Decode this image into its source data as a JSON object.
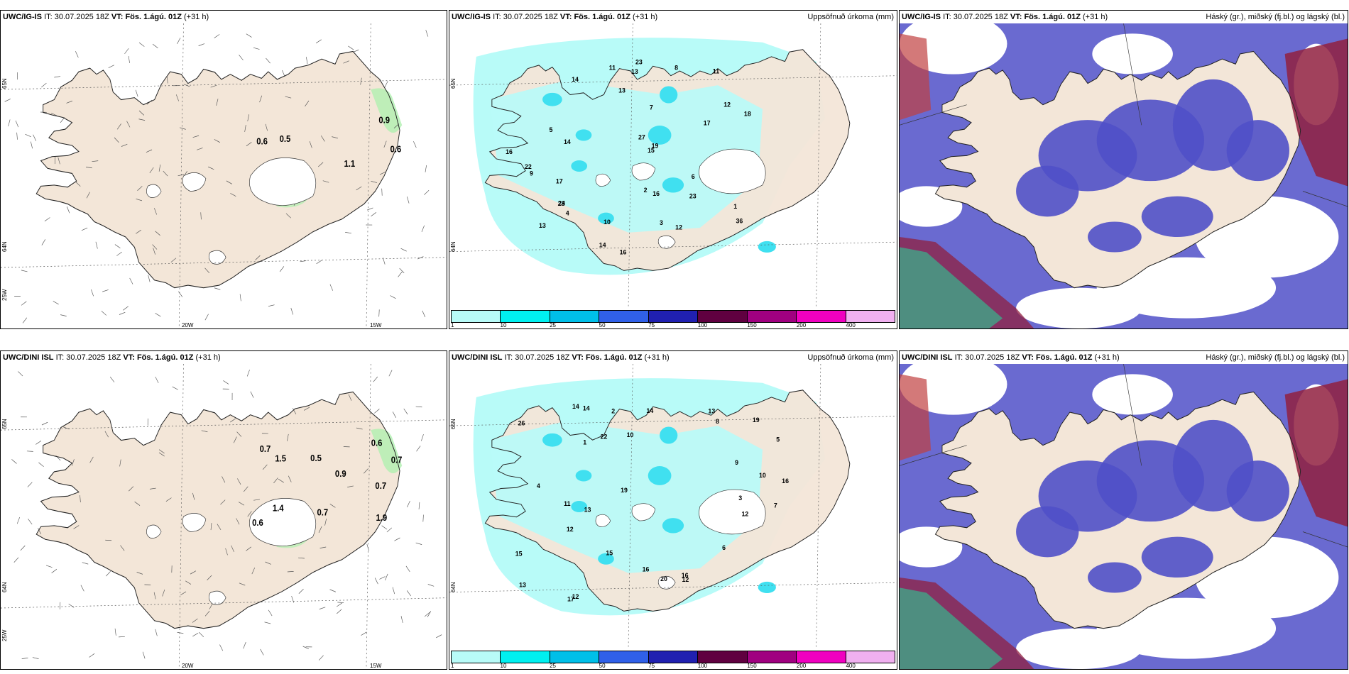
{
  "legend": {
    "ticks": [
      "1",
      "10",
      "25",
      "50",
      "75",
      "100",
      "150",
      "200",
      "400"
    ],
    "colors": [
      "#b8fbf8",
      "#00f0f0",
      "#00bfe8",
      "#3060e8",
      "#2020b0",
      "#600040",
      "#a00080",
      "#f000c0",
      "#f0b0f0"
    ]
  },
  "colors": {
    "land": "#f3e6d8",
    "sea": "#ffffff",
    "precip_light": "#b8fbf8",
    "precip_mid": "#40e0f0",
    "precip_heavy": "#00bfe8",
    "wind_green": "#b0f0b0",
    "cloud_low": "#5050c8",
    "cloud_mid": "#90203f",
    "cloud_high": "#30c090"
  },
  "panels": [
    {
      "model": "UWC/IG-IS",
      "it_label": "IT:",
      "it_value": "30.07.2025 18Z",
      "vt_label": "VT:",
      "vt_value": "Fös. 1.ágú. 01Z",
      "lead": "(+31 h)",
      "title_right": "",
      "axis": {
        "lat_top": "65N",
        "lat_mid": "64N",
        "lon_left": "25W",
        "lon_mid": "20W",
        "lon_right": "15W"
      },
      "values": [
        "0.5",
        "0.6",
        "0.6",
        "1.1",
        "0.9"
      ]
    },
    {
      "model": "UWC/IG-IS",
      "it_label": "IT:",
      "it_value": "30.07.2025 18Z",
      "vt_label": "VT:",
      "vt_value": "Fös. 1.ágú. 01Z",
      "lead": "(+31 h)",
      "title_right": "Uppsöfnuð úrkoma (mm)",
      "axis": {
        "lat_top": "65N",
        "lat_mid": "64N"
      },
      "values": [
        "13",
        "11",
        "14",
        "12",
        "16",
        "14",
        "17",
        "24",
        "18",
        "17",
        "22",
        "23",
        "23",
        "15",
        "16",
        "11",
        "36",
        "16",
        "23",
        "14",
        "12",
        "13",
        "13",
        "19",
        "27",
        "10",
        "9",
        "8",
        "7",
        "6",
        "5",
        "4",
        "3",
        "2",
        "1"
      ]
    },
    {
      "model": "UWC/IG-IS",
      "it_label": "IT:",
      "it_value": "30.07.2025 18Z",
      "vt_label": "VT:",
      "vt_value": "Fös. 1.ágú. 01Z",
      "lead": "(+31 h)",
      "title_right": "Háský (gr.), miðský (fj.bl.) og lágský (bl.)",
      "axis": {},
      "values": []
    },
    {
      "model": "UWC/DINI ISL",
      "it_label": "IT:",
      "it_value": "30.07.2025 18Z",
      "vt_label": "VT:",
      "vt_value": "Fös. 1.ágú. 01Z",
      "lead": "(+31 h)",
      "title_right": "",
      "axis": {
        "lat_top": "65N",
        "lat_mid": "64N",
        "lon_left": "25W",
        "lon_mid": "20W",
        "lon_right": "15W"
      },
      "values": [
        "0.7",
        "0.6",
        "0.7",
        "0.6",
        "0.5",
        "0.9",
        "1.5",
        "0.7",
        "1.4",
        "1.9",
        "0.7"
      ]
    },
    {
      "model": "UWC/DINI ISL",
      "it_label": "IT:",
      "it_value": "30.07.2025 18Z",
      "vt_label": "VT:",
      "vt_value": "Fös. 1.ágú. 01Z",
      "lead": "(+31 h)",
      "title_right": "Uppsöfnuð úrkoma (mm)",
      "axis": {
        "lat_top": "65N",
        "lat_mid": "64N"
      },
      "values": [
        "12",
        "13",
        "12",
        "16",
        "17",
        "16",
        "20",
        "14",
        "13",
        "10",
        "11",
        "13",
        "22",
        "15",
        "14",
        "12",
        "26",
        "15",
        "19",
        "12",
        "14",
        "16",
        "19",
        "10",
        "9",
        "8",
        "7",
        "6",
        "5",
        "4",
        "3",
        "2",
        "1"
      ]
    },
    {
      "model": "UWC/DINI ISL",
      "it_label": "IT:",
      "it_value": "30.07.2025 18Z",
      "vt_label": "VT:",
      "vt_value": "Fös. 1.ágú. 01Z",
      "lead": "(+31 h)",
      "title_right": "Háský (gr.), miðský (fj.bl.) og lágský (bl.)",
      "axis": {},
      "values": []
    }
  ]
}
